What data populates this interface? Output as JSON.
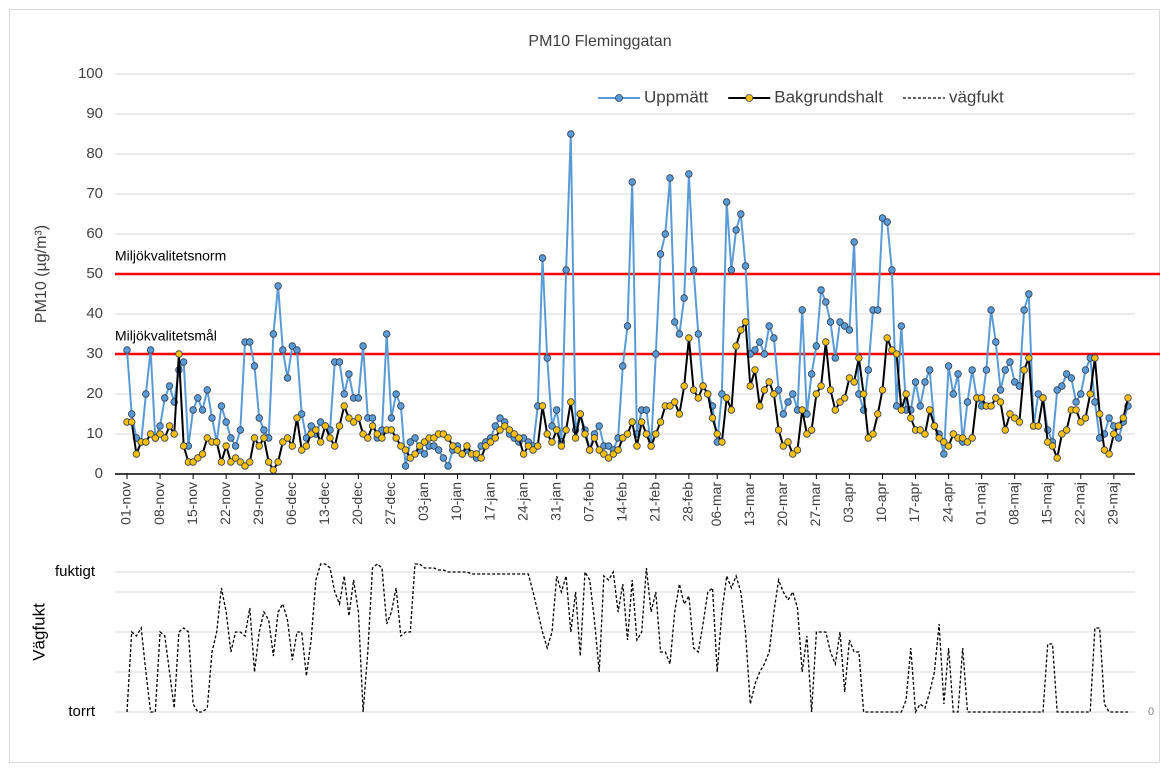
{
  "chart_data": [
    {
      "type": "line",
      "title": "PM10 Fleminggatan",
      "y_label": "PM10 (µg/m³)",
      "categories": [
        "01-nov",
        null,
        null,
        null,
        null,
        null,
        null,
        "08-nov",
        null,
        null,
        null,
        null,
        null,
        null,
        "15-nov",
        null,
        null,
        null,
        null,
        null,
        null,
        "22-nov",
        null,
        null,
        null,
        null,
        null,
        null,
        "29-nov",
        null,
        null,
        null,
        null,
        null,
        null,
        "06-dec",
        null,
        null,
        null,
        null,
        null,
        null,
        "13-dec",
        null,
        null,
        null,
        null,
        null,
        null,
        "20-dec",
        null,
        null,
        null,
        null,
        null,
        null,
        "27-dec",
        null,
        null,
        null,
        null,
        null,
        null,
        "03-jan",
        null,
        null,
        null,
        null,
        null,
        null,
        "10-jan",
        null,
        null,
        null,
        null,
        null,
        null,
        "17-jan",
        null,
        null,
        null,
        null,
        null,
        null,
        "24-jan",
        null,
        null,
        null,
        null,
        null,
        null,
        "31-jan",
        null,
        null,
        null,
        null,
        null,
        null,
        "07-feb",
        null,
        null,
        null,
        null,
        null,
        null,
        "14-feb",
        null,
        null,
        null,
        null,
        null,
        null,
        "21-feb",
        null,
        null,
        null,
        null,
        null,
        null,
        "28-feb",
        null,
        null,
        null,
        null,
        null,
        "06-mar",
        null,
        null,
        null,
        null,
        null,
        null,
        "13-mar",
        null,
        null,
        null,
        null,
        null,
        null,
        "20-mar",
        null,
        null,
        null,
        null,
        null,
        null,
        "27-mar",
        null,
        null,
        null,
        null,
        null,
        null,
        "03-apr",
        null,
        null,
        null,
        null,
        null,
        null,
        "10-apr",
        null,
        null,
        null,
        null,
        null,
        null,
        "17-apr",
        null,
        null,
        null,
        null,
        null,
        null,
        "24-apr",
        null,
        null,
        null,
        null,
        null,
        null,
        "01-maj",
        null,
        null,
        null,
        null,
        null,
        null,
        "08-maj",
        null,
        null,
        null,
        null,
        null,
        null,
        "15-maj",
        null,
        null,
        null,
        null,
        null,
        null,
        "22-maj",
        null,
        null,
        null,
        null,
        null,
        null,
        "29-maj",
        null,
        null,
        null
      ],
      "series": [
        {
          "name": "Uppmätt",
          "color": "#5b9bd5",
          "marker_color": "#5b9bd5",
          "values": [
            31,
            15,
            9,
            8,
            20,
            31,
            9,
            12,
            19,
            22,
            18,
            26,
            28,
            7,
            16,
            19,
            16,
            21,
            14,
            8,
            17,
            13,
            9,
            7,
            11,
            33,
            33,
            27,
            14,
            11,
            9,
            35,
            47,
            31,
            24,
            32,
            31,
            15,
            9,
            12,
            10,
            13,
            12,
            11,
            28,
            28,
            20,
            25,
            19,
            19,
            32,
            14,
            14,
            9,
            11,
            35,
            14,
            20,
            17,
            2,
            8,
            9,
            6,
            5,
            7,
            7,
            6,
            4,
            2,
            6,
            7,
            5,
            6,
            5,
            4,
            7,
            8,
            9,
            12,
            14,
            13,
            10,
            9,
            8,
            9,
            8,
            7,
            17,
            54,
            29,
            12,
            16,
            8,
            51,
            85,
            11,
            15,
            11,
            6,
            10,
            12,
            7,
            7,
            6,
            9,
            27,
            37,
            73,
            10,
            16,
            16,
            7,
            30,
            55,
            60,
            74,
            38,
            35,
            44,
            75,
            51,
            35,
            22,
            20,
            17,
            8,
            20,
            68,
            51,
            61,
            65,
            52,
            30,
            31,
            33,
            30,
            37,
            34,
            21,
            15,
            18,
            20,
            16,
            41,
            15,
            25,
            32,
            46,
            43,
            38,
            29,
            38,
            37,
            36,
            58,
            20,
            16,
            26,
            41,
            41,
            64,
            63,
            51,
            17,
            37,
            16,
            16,
            23,
            17,
            23,
            26,
            12,
            10,
            5,
            27,
            20,
            25,
            8,
            18,
            26,
            19,
            17,
            26,
            41,
            33,
            21,
            26,
            28,
            23,
            22,
            41,
            45,
            12,
            20,
            19,
            11,
            8,
            21,
            22,
            25,
            24,
            18,
            20,
            26,
            29,
            18,
            9,
            10,
            14,
            12,
            9,
            13,
            17
          ]
        },
        {
          "name": "Bakgrundshalt",
          "color": "#000000",
          "marker_color": "#ffc000",
          "values": [
            13,
            13,
            5,
            8,
            8,
            10,
            9,
            10,
            9,
            12,
            10,
            30,
            7,
            3,
            3,
            4,
            5,
            9,
            8,
            8,
            3,
            7,
            3,
            4,
            3,
            2,
            3,
            9,
            7,
            9,
            3,
            1,
            3,
            8,
            9,
            7,
            14,
            6,
            7,
            10,
            11,
            8,
            12,
            9,
            7,
            12,
            17,
            14,
            13,
            14,
            10,
            9,
            12,
            10,
            9,
            11,
            11,
            9,
            7,
            6,
            4,
            5,
            7,
            8,
            9,
            9,
            10,
            10,
            9,
            7,
            6,
            5,
            7,
            5,
            5,
            4,
            7,
            8,
            9,
            11,
            12,
            11,
            10,
            9,
            5,
            7,
            6,
            7,
            17,
            10,
            8,
            11,
            7,
            11,
            18,
            9,
            15,
            10,
            6,
            9,
            6,
            5,
            4,
            5,
            6,
            9,
            10,
            13,
            7,
            13,
            10,
            7,
            10,
            13,
            17,
            17,
            18,
            15,
            22,
            34,
            21,
            19,
            22,
            20,
            14,
            10,
            8,
            19,
            16,
            32,
            36,
            38,
            22,
            26,
            17,
            21,
            23,
            20,
            11,
            7,
            8,
            5,
            6,
            16,
            10,
            11,
            20,
            22,
            33,
            21,
            16,
            18,
            19,
            24,
            23,
            29,
            20,
            9,
            10,
            15,
            21,
            34,
            31,
            30,
            16,
            20,
            14,
            11,
            11,
            10,
            16,
            12,
            9,
            8,
            7,
            10,
            9,
            9,
            8,
            9,
            19,
            19,
            17,
            17,
            19,
            18,
            11,
            15,
            14,
            13,
            26,
            29,
            12,
            12,
            19,
            8,
            7,
            4,
            10,
            11,
            16,
            16,
            13,
            14,
            20,
            29,
            15,
            6,
            5,
            10,
            12,
            14,
            19
          ]
        }
      ],
      "reference_lines": [
        {
          "label": "Miljökvalitetsnorm",
          "value": 50,
          "color": "#ff0000"
        },
        {
          "label": "Miljökvalitetsmål",
          "value": 30,
          "color": "#ff0000"
        }
      ],
      "ylim": [
        0,
        100
      ],
      "yticks": [
        0,
        10,
        20,
        30,
        40,
        50,
        60,
        70,
        80,
        90,
        100
      ],
      "grid": true,
      "legend": "top-right"
    },
    {
      "type": "line",
      "y_label": "Vägfukt",
      "series": [
        {
          "name": "vägfukt",
          "color": "#000000",
          "dashed": true,
          "values": [
            0,
            2,
            1.9,
            2.1,
            1,
            0,
            0,
            2,
            1.9,
            1,
            0.1,
            2,
            2.1,
            2,
            0.2,
            0,
            0,
            0.1,
            1.5,
            2,
            3.1,
            2.5,
            1.5,
            2,
            2,
            1.9,
            2.6,
            1,
            2,
            2.5,
            2.3,
            1.4,
            2.5,
            2.7,
            2.3,
            1.3,
            2,
            2,
            0.9,
            1.8,
            3.3,
            3.7,
            3.7,
            3.6,
            3,
            2.7,
            3.4,
            2.4,
            3.3,
            2.5,
            0,
            1.5,
            3.6,
            3.7,
            3.6,
            2.2,
            2.5,
            3.1,
            1.9,
            2,
            2,
            3.7,
            3.7,
            3.6,
            3.6,
            3.6,
            3.55,
            3.55,
            3.5,
            3.5,
            3.5,
            3.5,
            3.5,
            3.45,
            3.45,
            3.45,
            3.45,
            3.45,
            3.45,
            3.45,
            3.45,
            3.45,
            3.45,
            3.45,
            3.45,
            3.45,
            3,
            2.5,
            2,
            1.6,
            2,
            3.4,
            3,
            3.4,
            2,
            3,
            1.4,
            3.5,
            3.3,
            2.3,
            1,
            3.4,
            3.3,
            3.5,
            2.5,
            3.2,
            1.8,
            3.3,
            1.8,
            2,
            3.6,
            2.5,
            3,
            1.5,
            1.5,
            1.2,
            2.5,
            3.2,
            2.7,
            2.9,
            1.6,
            1.5,
            2.2,
            3,
            3.1,
            1,
            2.5,
            3.4,
            3.1,
            3.4,
            3,
            2,
            0.2,
            0.7,
            1,
            1.2,
            1.5,
            2.5,
            3.3,
            3,
            2.8,
            3,
            2.6,
            1,
            1.9,
            0,
            2,
            2,
            2,
            1.5,
            1.2,
            2,
            0.5,
            1.8,
            1.5,
            1.5,
            0,
            0,
            0,
            0,
            0,
            0,
            0,
            0,
            0,
            0.3,
            1.6,
            0,
            0.2,
            0.1,
            0.5,
            1,
            2.2,
            0.2,
            1.6,
            0,
            0,
            1.6,
            0,
            0,
            0,
            0,
            0,
            0,
            0,
            0,
            0,
            0,
            0,
            0,
            0,
            0,
            0,
            0,
            0,
            1.7,
            1.7,
            0,
            0,
            0,
            0,
            0,
            0,
            0,
            0,
            2.1,
            2.1,
            0.2,
            0,
            0,
            0,
            0,
            0
          ]
        }
      ],
      "ylim": [
        0,
        4
      ],
      "yticks": [
        {
          "value": 0,
          "label": "torrt"
        },
        {
          "value": 1,
          "label": null
        },
        {
          "value": 2,
          "label": null
        },
        {
          "value": 3,
          "label": null
        },
        {
          "value": 3.5,
          "label": "fuktigt"
        }
      ],
      "y2lim": [
        0,
        4
      ],
      "y2ticks": [
        0
      ],
      "grid": true
    }
  ]
}
